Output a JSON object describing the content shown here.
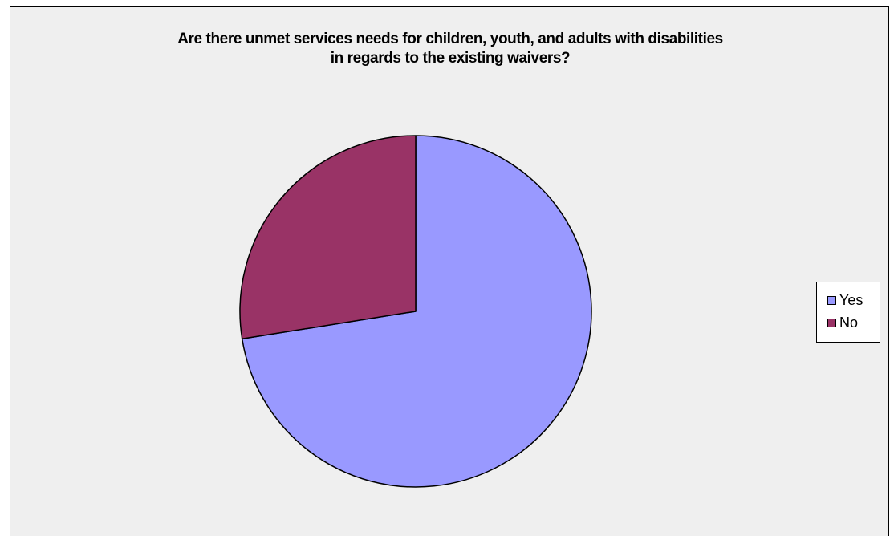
{
  "chart_data": {
    "type": "pie",
    "title_lines": [
      "Are there unmet services needs for children, youth, and adults with disabilities",
      "in regards to the existing waivers?"
    ],
    "categories": [
      "Yes",
      "No"
    ],
    "values": [
      72.5,
      27.5
    ],
    "colors": [
      "#9999ff",
      "#993366"
    ],
    "start_angle_deg": 0,
    "direction": "clockwise",
    "legend_position": "right"
  }
}
